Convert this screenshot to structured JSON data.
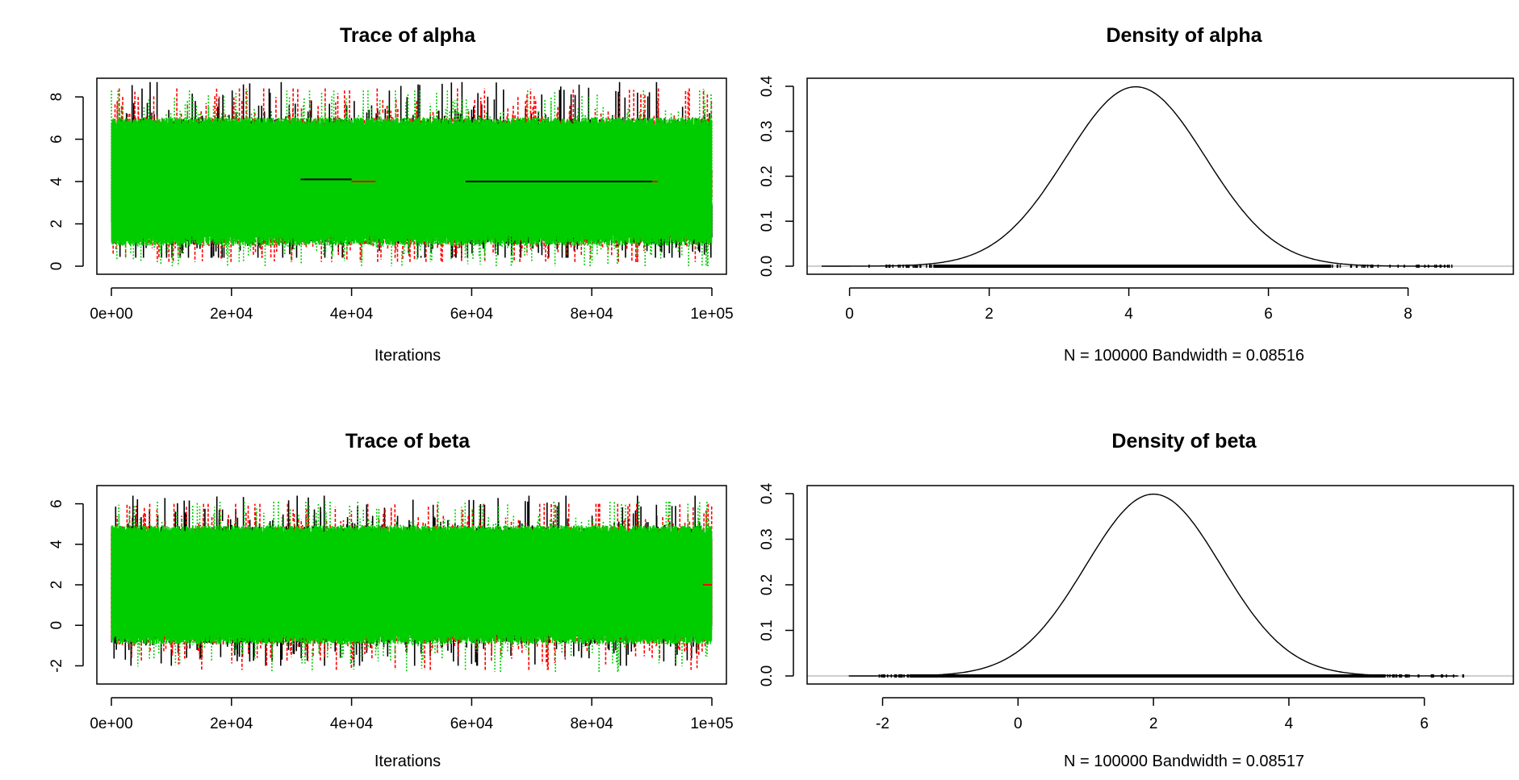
{
  "chart_data": [
    {
      "type": "line",
      "panel": "trace",
      "title": "Trace of alpha",
      "xlabel": "Iterations",
      "ylabel": "",
      "xlim": [
        0,
        100000
      ],
      "ylim": [
        0,
        8.5
      ],
      "xticks": [
        0,
        20000,
        40000,
        60000,
        80000,
        100000
      ],
      "xtick_labels": [
        "0e+00",
        "2e+04",
        "4e+04",
        "6e+04",
        "8e+04",
        "1e+05"
      ],
      "yticks": [
        0,
        2,
        4,
        6,
        8
      ],
      "ytick_labels": [
        "0",
        "2",
        "4",
        "6",
        "8"
      ],
      "grid": false,
      "series": [
        {
          "color": "#000000",
          "line_style": "solid",
          "mean": 4.0,
          "band": [
            1.0,
            7.0
          ],
          "extremes": [
            0.4,
            8.7
          ]
        },
        {
          "color": "#ff0000",
          "line_style": "dashed",
          "mean": 4.0,
          "band": [
            1.0,
            7.0
          ],
          "extremes": [
            0.2,
            8.4
          ]
        },
        {
          "color": "#00cd00",
          "line_style": "dotted",
          "mean": 4.0,
          "band": [
            1.0,
            7.0
          ],
          "extremes": [
            0.0,
            8.3
          ]
        }
      ],
      "flat_segments": [
        {
          "color": "#000000",
          "x": [
            31500,
            40000
          ],
          "y": 4.1
        },
        {
          "color": "#ff0000",
          "x": [
            40000,
            44000
          ],
          "y": 4.0
        },
        {
          "color": "#000000",
          "x": [
            59000,
            90000
          ],
          "y": 4.0
        },
        {
          "color": "#ff0000",
          "x": [
            90000,
            91000
          ],
          "y": 4.0
        }
      ]
    },
    {
      "type": "line",
      "panel": "density",
      "title": "Density of alpha",
      "xlabel": "N = 100000   Bandwidth = 0.08516",
      "ylabel": "",
      "xlim": [
        -0.4,
        9.3
      ],
      "ylim": [
        0,
        0.4
      ],
      "xticks": [
        0,
        2,
        4,
        6,
        8
      ],
      "xtick_labels": [
        "0",
        "2",
        "4",
        "6",
        "8"
      ],
      "yticks": [
        0,
        0.1,
        0.2,
        0.3,
        0.4
      ],
      "ytick_labels": [
        "0.0",
        "0.1",
        "0.2",
        "0.3",
        "0.4"
      ],
      "grid": false,
      "density": {
        "shape": "normal",
        "mean": 4.1,
        "sd": 1.0,
        "peak": 0.399
      },
      "rug": {
        "range": [
          0.2,
          8.65
        ],
        "dense_range": [
          1.2,
          6.9
        ]
      }
    },
    {
      "type": "line",
      "panel": "trace",
      "title": "Trace of beta",
      "xlabel": "Iterations",
      "ylabel": "",
      "xlim": [
        0,
        100000
      ],
      "ylim": [
        -2.5,
        6.5
      ],
      "xticks": [
        0,
        20000,
        40000,
        60000,
        80000,
        100000
      ],
      "xtick_labels": [
        "0e+00",
        "2e+04",
        "4e+04",
        "6e+04",
        "8e+04",
        "1e+05"
      ],
      "yticks": [
        -2,
        0,
        2,
        4,
        6
      ],
      "ytick_labels": [
        "-2",
        "0",
        "2",
        "4",
        "6"
      ],
      "grid": false,
      "series": [
        {
          "color": "#000000",
          "line_style": "solid",
          "mean": 2.0,
          "band": [
            -0.9,
            4.9
          ],
          "extremes": [
            -2.0,
            6.4
          ]
        },
        {
          "color": "#ff0000",
          "line_style": "dashed",
          "mean": 2.0,
          "band": [
            -0.9,
            4.9
          ],
          "extremes": [
            -2.2,
            6.0
          ]
        },
        {
          "color": "#00cd00",
          "line_style": "dotted",
          "mean": 2.0,
          "band": [
            -0.9,
            4.9
          ],
          "extremes": [
            -2.3,
            6.1
          ]
        }
      ],
      "flat_segments": [
        {
          "color": "#ff0000",
          "x": [
            98500,
            100000
          ],
          "y": 2.0
        }
      ]
    },
    {
      "type": "line",
      "panel": "density",
      "title": "Density of beta",
      "xlabel": "N = 100000   Bandwidth = 0.08517",
      "ylabel": "",
      "xlim": [
        -2.9,
        7.1
      ],
      "ylim": [
        0,
        0.4
      ],
      "xticks": [
        -2,
        0,
        2,
        4,
        6
      ],
      "xtick_labels": [
        "-2",
        "0",
        "2",
        "4",
        "6"
      ],
      "yticks": [
        0,
        0.1,
        0.2,
        0.3,
        0.4
      ],
      "ytick_labels": [
        "0.0",
        "0.1",
        "0.2",
        "0.3",
        "0.4"
      ],
      "grid": false,
      "density": {
        "shape": "normal",
        "mean": 2.0,
        "sd": 1.0,
        "peak": 0.399
      },
      "rug": {
        "range": [
          -2.1,
          6.6
        ],
        "dense_range": [
          -1.6,
          5.4
        ]
      }
    }
  ]
}
